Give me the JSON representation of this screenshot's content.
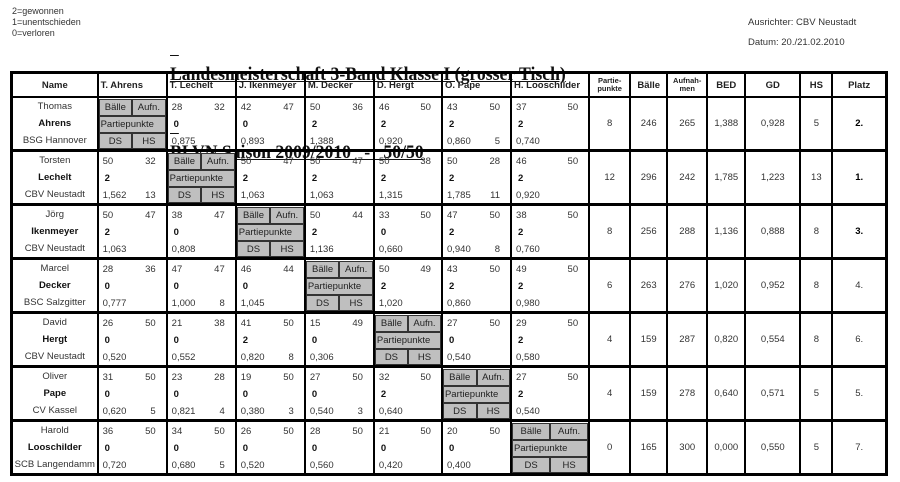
{
  "legend": [
    "2=gewonnen",
    "1=unentschieden",
    "0=verloren"
  ],
  "title": {
    "line1": "Landesmeisterschaft 3-Band Klasse I (grosser Tisch)",
    "line2": "BLVN Saison 2009/2010   -   50/50"
  },
  "organizer": "Ausrichter: CBV Neustadt",
  "date": "Datum: 20./21.02.2010",
  "headers": {
    "name": "Name",
    "opponents": [
      "T. Ahrens",
      "T. Lechelt",
      "J. Ikenmeyer",
      "M. Decker",
      "D. Hergt",
      "O. Pape",
      "H. Looschilder"
    ],
    "partiepunkte": "Partie-punkte",
    "baelle": "Bälle",
    "aufnahmen": "Aufnah-men",
    "bed": "BED",
    "gd": "GD",
    "hs": "HS",
    "platz": "Platz"
  },
  "self_cell": {
    "balls": "Bälle",
    "innings": "Aufn.",
    "points": "Partiepunkte",
    "ds": "DS",
    "hs": "HS"
  },
  "players": [
    {
      "first": "Thomas",
      "last": "Ahrens",
      "club": "BSG Hannover",
      "matches": [
        null,
        {
          "balls": "28",
          "innings": "32",
          "points": "0",
          "avg": "0,875",
          "hs": ""
        },
        {
          "balls": "42",
          "innings": "47",
          "points": "0",
          "avg": "0,893",
          "hs": ""
        },
        {
          "balls": "50",
          "innings": "36",
          "points": "2",
          "avg": "1,388",
          "hs": ""
        },
        {
          "balls": "46",
          "innings": "50",
          "points": "2",
          "avg": "0,920",
          "hs": ""
        },
        {
          "balls": "43",
          "innings": "50",
          "points": "2",
          "avg": "0,860",
          "hs": "5"
        },
        {
          "balls": "37",
          "innings": "50",
          "points": "2",
          "avg": "0,740",
          "hs": ""
        }
      ],
      "totals": {
        "partiepunkte": "8",
        "baelle": "246",
        "aufnahmen": "265",
        "bed": "1,388",
        "gd": "0,928",
        "hs": "5",
        "platz": "2."
      }
    },
    {
      "first": "Torsten",
      "last": "Lechelt",
      "club": "CBV Neustadt",
      "matches": [
        {
          "balls": "50",
          "innings": "32",
          "points": "2",
          "avg": "1,562",
          "hs": "13"
        },
        null,
        {
          "balls": "50",
          "innings": "47",
          "points": "2",
          "avg": "1,063",
          "hs": ""
        },
        {
          "balls": "50",
          "innings": "47",
          "points": "2",
          "avg": "1,063",
          "hs": ""
        },
        {
          "balls": "50",
          "innings": "38",
          "points": "2",
          "avg": "1,315",
          "hs": ""
        },
        {
          "balls": "50",
          "innings": "28",
          "points": "2",
          "avg": "1,785",
          "hs": "11"
        },
        {
          "balls": "46",
          "innings": "50",
          "points": "2",
          "avg": "0,920",
          "hs": ""
        }
      ],
      "totals": {
        "partiepunkte": "12",
        "baelle": "296",
        "aufnahmen": "242",
        "bed": "1,785",
        "gd": "1,223",
        "hs": "13",
        "platz": "1."
      }
    },
    {
      "first": "Jörg",
      "last": "Ikenmeyer",
      "club": "CBV Neustadt",
      "matches": [
        {
          "balls": "50",
          "innings": "47",
          "points": "2",
          "avg": "1,063",
          "hs": ""
        },
        {
          "balls": "38",
          "innings": "47",
          "points": "0",
          "avg": "0,808",
          "hs": ""
        },
        null,
        {
          "balls": "50",
          "innings": "44",
          "points": "2",
          "avg": "1,136",
          "hs": ""
        },
        {
          "balls": "33",
          "innings": "50",
          "points": "0",
          "avg": "0,660",
          "hs": ""
        },
        {
          "balls": "47",
          "innings": "50",
          "points": "2",
          "avg": "0,940",
          "hs": "8"
        },
        {
          "balls": "38",
          "innings": "50",
          "points": "2",
          "avg": "0,760",
          "hs": ""
        }
      ],
      "totals": {
        "partiepunkte": "8",
        "baelle": "256",
        "aufnahmen": "288",
        "bed": "1,136",
        "gd": "0,888",
        "hs": "8",
        "platz": "3."
      }
    },
    {
      "first": "Marcel",
      "last": "Decker",
      "club": "BSC Salzgitter",
      "matches": [
        {
          "balls": "28",
          "innings": "36",
          "points": "0",
          "avg": "0,777",
          "hs": ""
        },
        {
          "balls": "47",
          "innings": "47",
          "points": "0",
          "avg": "1,000",
          "hs": "8"
        },
        {
          "balls": "46",
          "innings": "44",
          "points": "0",
          "avg": "1,045",
          "hs": ""
        },
        null,
        {
          "balls": "50",
          "innings": "49",
          "points": "2",
          "avg": "1,020",
          "hs": ""
        },
        {
          "balls": "43",
          "innings": "50",
          "points": "2",
          "avg": "0,860",
          "hs": ""
        },
        {
          "balls": "49",
          "innings": "50",
          "points": "2",
          "avg": "0,980",
          "hs": ""
        }
      ],
      "totals": {
        "partiepunkte": "6",
        "baelle": "263",
        "aufnahmen": "276",
        "bed": "1,020",
        "gd": "0,952",
        "hs": "8",
        "platz": "4."
      }
    },
    {
      "first": "David",
      "last": "Hergt",
      "club": "CBV Neustadt",
      "matches": [
        {
          "balls": "26",
          "innings": "50",
          "points": "0",
          "avg": "0,520",
          "hs": ""
        },
        {
          "balls": "21",
          "innings": "38",
          "points": "0",
          "avg": "0,552",
          "hs": ""
        },
        {
          "balls": "41",
          "innings": "50",
          "points": "2",
          "avg": "0,820",
          "hs": "8"
        },
        {
          "balls": "15",
          "innings": "49",
          "points": "0",
          "avg": "0,306",
          "hs": ""
        },
        null,
        {
          "balls": "27",
          "innings": "50",
          "points": "0",
          "avg": "0,540",
          "hs": ""
        },
        {
          "balls": "29",
          "innings": "50",
          "points": "2",
          "avg": "0,580",
          "hs": ""
        }
      ],
      "totals": {
        "partiepunkte": "4",
        "baelle": "159",
        "aufnahmen": "287",
        "bed": "0,820",
        "gd": "0,554",
        "hs": "8",
        "platz": "6."
      }
    },
    {
      "first": "Oliver",
      "last": "Pape",
      "club": "CV Kassel",
      "matches": [
        {
          "balls": "31",
          "innings": "50",
          "points": "0",
          "avg": "0,620",
          "hs": "5"
        },
        {
          "balls": "23",
          "innings": "28",
          "points": "0",
          "avg": "0,821",
          "hs": "4"
        },
        {
          "balls": "19",
          "innings": "50",
          "points": "0",
          "avg": "0,380",
          "hs": "3"
        },
        {
          "balls": "27",
          "innings": "50",
          "points": "0",
          "avg": "0,540",
          "hs": "3"
        },
        {
          "balls": "32",
          "innings": "50",
          "points": "2",
          "avg": "0,640",
          "hs": ""
        },
        null,
        {
          "balls": "27",
          "innings": "50",
          "points": "2",
          "avg": "0,540",
          "hs": ""
        }
      ],
      "totals": {
        "partiepunkte": "4",
        "baelle": "159",
        "aufnahmen": "278",
        "bed": "0,640",
        "gd": "0,571",
        "hs": "5",
        "platz": "5."
      }
    },
    {
      "first": "Harold",
      "last": "Looschilder",
      "club": "SCB Langendamm",
      "matches": [
        {
          "balls": "36",
          "innings": "50",
          "points": "0",
          "avg": "0,720",
          "hs": ""
        },
        {
          "balls": "34",
          "innings": "50",
          "points": "0",
          "avg": "0,680",
          "hs": "5"
        },
        {
          "balls": "26",
          "innings": "50",
          "points": "0",
          "avg": "0,520",
          "hs": ""
        },
        {
          "balls": "28",
          "innings": "50",
          "points": "0",
          "avg": "0,560",
          "hs": ""
        },
        {
          "balls": "21",
          "innings": "50",
          "points": "0",
          "avg": "0,420",
          "hs": ""
        },
        {
          "balls": "20",
          "innings": "50",
          "points": "0",
          "avg": "0,400",
          "hs": ""
        },
        null
      ],
      "totals": {
        "partiepunkte": "0",
        "baelle": "165",
        "aufnahmen": "300",
        "bed": "0,000",
        "gd": "0,550",
        "hs": "5",
        "platz": "7."
      }
    }
  ]
}
